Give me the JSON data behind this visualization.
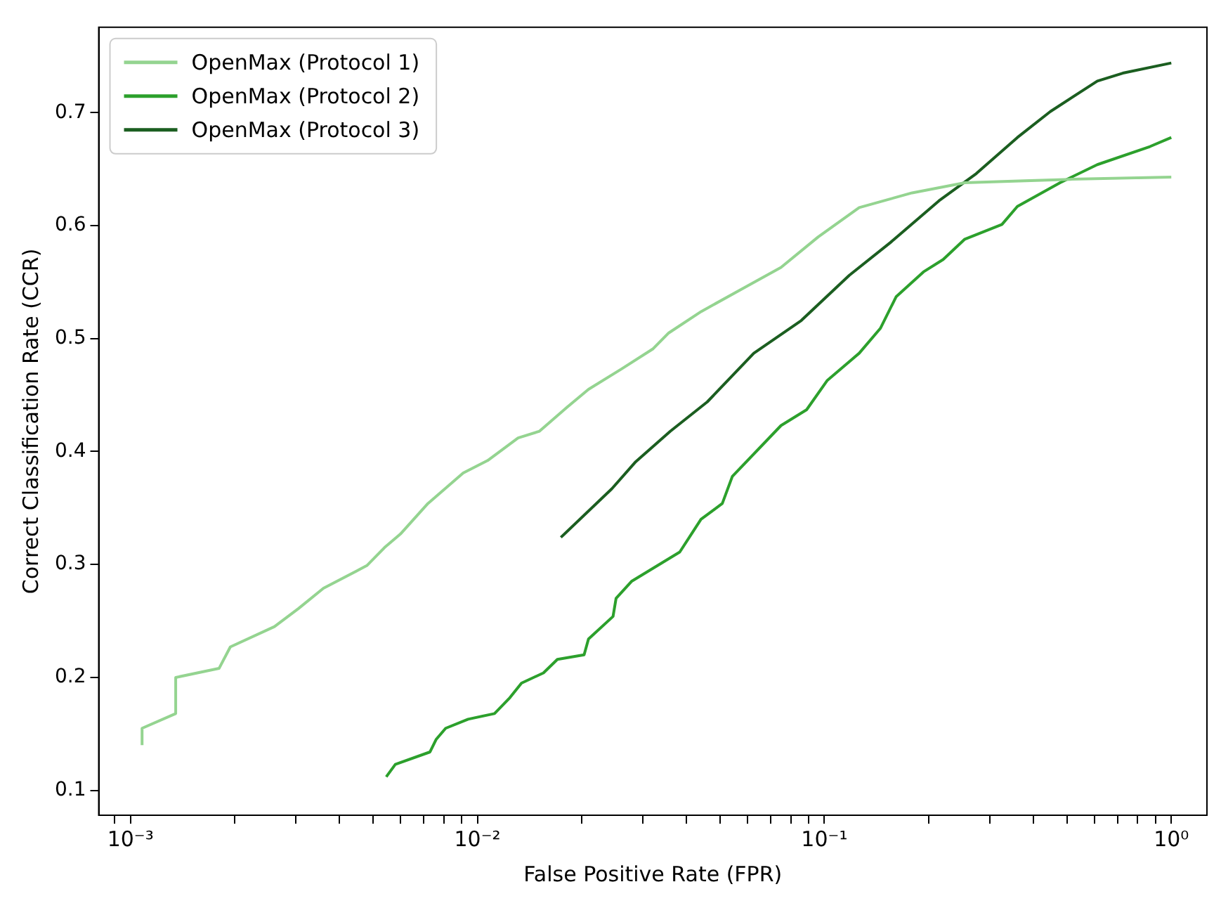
{
  "chart_data": {
    "type": "line",
    "xlabel": "False Positive Rate (FPR)",
    "ylabel": "Correct Classification Rate (CCR)",
    "log": "x",
    "grid": false,
    "legend": "top left",
    "marker": "none",
    "line_style": "solid",
    "xlim": [
      0.00081,
      1.267
    ],
    "ylim": [
      0.078,
      0.7756
    ],
    "xticks": [
      {
        "value": 0.0009,
        "label": null
      },
      {
        "value": 0.001,
        "label": "10⁻³"
      },
      {
        "value": 0.002,
        "label": null
      },
      {
        "value": 0.003,
        "label": null
      },
      {
        "value": 0.004,
        "label": null
      },
      {
        "value": 0.005,
        "label": null
      },
      {
        "value": 0.006,
        "label": null
      },
      {
        "value": 0.007,
        "label": null
      },
      {
        "value": 0.008,
        "label": null
      },
      {
        "value": 0.009,
        "label": null
      },
      {
        "value": 0.01,
        "label": "10⁻²"
      },
      {
        "value": 0.02,
        "label": null
      },
      {
        "value": 0.03,
        "label": null
      },
      {
        "value": 0.04,
        "label": null
      },
      {
        "value": 0.05,
        "label": null
      },
      {
        "value": 0.06,
        "label": null
      },
      {
        "value": 0.07,
        "label": null
      },
      {
        "value": 0.08,
        "label": null
      },
      {
        "value": 0.09,
        "label": null
      },
      {
        "value": 0.1,
        "label": "10⁻¹"
      },
      {
        "value": 0.2,
        "label": null
      },
      {
        "value": 0.3,
        "label": null
      },
      {
        "value": 0.4,
        "label": null
      },
      {
        "value": 0.5,
        "label": null
      },
      {
        "value": 0.6,
        "label": null
      },
      {
        "value": 0.7,
        "label": null
      },
      {
        "value": 0.8,
        "label": null
      },
      {
        "value": 0.9,
        "label": null
      },
      {
        "value": 1,
        "label": "10⁰"
      }
    ],
    "yticks": [
      0.1,
      0.2,
      0.3,
      0.4,
      0.5,
      0.6,
      0.7
    ],
    "series": [
      {
        "name": "OpenMax (Protocol 1)",
        "color": "#94d490",
        "x": [
          0.00108,
          0.00108,
          0.00135,
          0.00135,
          0.0018,
          0.00194,
          0.0026,
          0.00305,
          0.0036,
          0.0048,
          0.0054,
          0.006,
          0.0072,
          0.0091,
          0.0107,
          0.0131,
          0.0151,
          0.0181,
          0.0209,
          0.026,
          0.0321,
          0.0356,
          0.0442,
          0.0587,
          0.075,
          0.096,
          0.126,
          0.179,
          0.254,
          0.51,
          1
        ],
        "values": [
          0.14,
          0.155,
          0.168,
          0.2,
          0.208,
          0.227,
          0.245,
          0.261,
          0.279,
          0.299,
          0.315,
          0.327,
          0.354,
          0.381,
          0.392,
          0.412,
          0.418,
          0.439,
          0.455,
          0.473,
          0.491,
          0.505,
          0.524,
          0.545,
          0.563,
          0.59,
          0.616,
          0.629,
          0.638,
          0.641,
          0.643
        ]
      },
      {
        "name": "OpenMax (Protocol 2)",
        "color": "#2ca02c",
        "x": [
          0.00546,
          0.0058,
          0.0073,
          0.0076,
          0.0081,
          0.0094,
          0.0112,
          0.0124,
          0.0134,
          0.0155,
          0.017,
          0.0203,
          0.0209,
          0.0246,
          0.0251,
          0.0278,
          0.0383,
          0.0441,
          0.0508,
          0.0543,
          0.075,
          0.0889,
          0.102,
          0.126,
          0.145,
          0.161,
          0.193,
          0.22,
          0.254,
          0.325,
          0.36,
          0.478,
          0.612,
          0.868,
          1
        ],
        "values": [
          0.112,
          0.123,
          0.134,
          0.145,
          0.155,
          0.163,
          0.168,
          0.182,
          0.195,
          0.204,
          0.216,
          0.22,
          0.234,
          0.254,
          0.27,
          0.285,
          0.311,
          0.34,
          0.354,
          0.378,
          0.423,
          0.437,
          0.463,
          0.487,
          0.509,
          0.537,
          0.559,
          0.57,
          0.588,
          0.601,
          0.617,
          0.638,
          0.654,
          0.67,
          0.678
        ]
      },
      {
        "name": "OpenMax (Protocol 3)",
        "color": "#1b5e20",
        "x": [
          0.0174,
          0.0244,
          0.0286,
          0.036,
          0.046,
          0.0626,
          0.0858,
          0.118,
          0.155,
          0.214,
          0.274,
          0.36,
          0.448,
          0.612,
          0.725,
          1
        ],
        "values": [
          0.324,
          0.367,
          0.391,
          0.418,
          0.444,
          0.487,
          0.516,
          0.556,
          0.585,
          0.622,
          0.646,
          0.678,
          0.701,
          0.728,
          0.735,
          0.744
        ]
      }
    ]
  }
}
